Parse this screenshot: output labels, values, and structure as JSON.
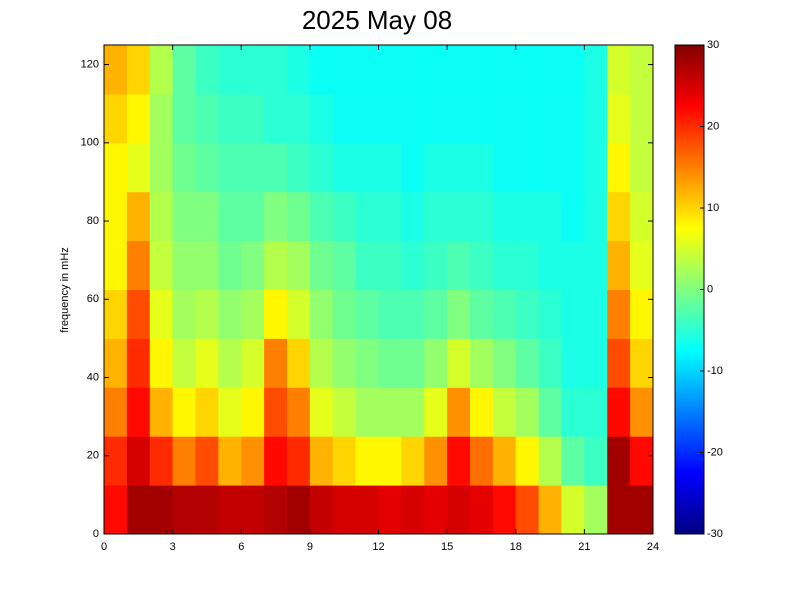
{
  "chart_data": {
    "type": "heatmap",
    "title": "2025 May 08",
    "y_label": "frequency in mHz",
    "xbins": [
      0,
      1,
      2,
      3,
      4,
      5,
      6,
      7,
      8,
      9,
      10,
      11,
      12,
      13,
      14,
      15,
      16,
      17,
      18,
      19,
      20,
      21,
      22,
      23,
      24
    ],
    "ybins": [
      0,
      12.5,
      25,
      37.5,
      50,
      62.5,
      75,
      87.5,
      100,
      112.5,
      125
    ],
    "z": [
      [
        22,
        28,
        28,
        27,
        27,
        26,
        26,
        27,
        28,
        26,
        25,
        25,
        24,
        25,
        24,
        25,
        24,
        22,
        18,
        12,
        5,
        2,
        28,
        28
      ],
      [
        20,
        25,
        20,
        15,
        18,
        12,
        14,
        22,
        20,
        12,
        10,
        8,
        8,
        10,
        14,
        22,
        16,
        12,
        8,
        3,
        -2,
        -4,
        28,
        22
      ],
      [
        15,
        22,
        12,
        8,
        10,
        6,
        8,
        18,
        15,
        6,
        4,
        2,
        2,
        2,
        6,
        14,
        8,
        4,
        2,
        -2,
        -5,
        -5,
        22,
        14
      ],
      [
        12,
        20,
        8,
        4,
        6,
        3,
        5,
        15,
        10,
        3,
        1,
        0,
        -1,
        -1,
        1,
        5,
        2,
        0,
        -2,
        -4,
        -6,
        -6,
        18,
        10
      ],
      [
        10,
        18,
        6,
        2,
        3,
        1,
        2,
        8,
        5,
        1,
        -1,
        -2,
        -3,
        -3,
        -2,
        0,
        -2,
        -3,
        -4,
        -5,
        -6,
        -6,
        15,
        8
      ],
      [
        8,
        15,
        4,
        1,
        1,
        -1,
        0,
        3,
        2,
        -1,
        -2,
        -4,
        -4,
        -5,
        -4,
        -3,
        -4,
        -5,
        -5,
        -6,
        -6,
        -6,
        12,
        6
      ],
      [
        8,
        12,
        3,
        0,
        0,
        -2,
        -2,
        0,
        -1,
        -3,
        -4,
        -5,
        -5,
        -6,
        -5,
        -5,
        -5,
        -6,
        -6,
        -6,
        -7,
        -6,
        10,
        5
      ],
      [
        8,
        6,
        2,
        -1,
        -2,
        -3,
        -3,
        -3,
        -4,
        -5,
        -6,
        -6,
        -6,
        -7,
        -6,
        -6,
        -6,
        -7,
        -7,
        -7,
        -7,
        -6,
        8,
        4
      ],
      [
        10,
        8,
        2,
        -2,
        -3,
        -4,
        -4,
        -5,
        -5,
        -6,
        -7,
        -7,
        -7,
        -7,
        -7,
        -7,
        -7,
        -7,
        -7,
        -7,
        -7,
        -6,
        6,
        4
      ],
      [
        12,
        10,
        3,
        -2,
        -4,
        -5,
        -5,
        -5,
        -6,
        -7,
        -7,
        -7,
        -7,
        -7,
        -7,
        -7,
        -7,
        -7,
        -7,
        -7,
        -7,
        -6,
        5,
        4
      ]
    ],
    "xlim": [
      0,
      24
    ],
    "xticks": [
      0,
      3,
      6,
      9,
      12,
      15,
      18,
      21,
      24
    ],
    "ylim": [
      0,
      125
    ],
    "yticks": [
      0,
      20,
      40,
      60,
      80,
      100,
      120
    ],
    "clim": [
      -30,
      30
    ],
    "cticks": [
      -30,
      -20,
      -10,
      0,
      10,
      20,
      30
    ],
    "colormap": "jet"
  }
}
